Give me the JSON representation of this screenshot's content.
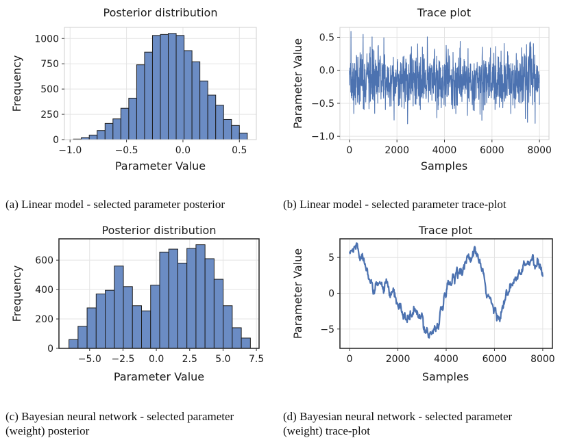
{
  "chart_data": [
    {
      "id": "a",
      "type": "bar",
      "title": "Posterior distribution",
      "xlabel": "Parameter Value",
      "ylabel": "Frequency",
      "xlim": [
        -1.05,
        0.65
      ],
      "ylim": [
        0,
        1110
      ],
      "xticks": [
        -1.0,
        -0.5,
        0.0,
        0.5
      ],
      "xtick_labels": [
        "−1.0",
        "−0.5",
        "0.0",
        "0.5"
      ],
      "yticks": [
        0,
        250,
        500,
        750,
        1000
      ],
      "ytick_labels": [
        "0",
        "250",
        "500",
        "750",
        "1000"
      ],
      "bin_edges": [
        -0.97,
        -0.9,
        -0.83,
        -0.76,
        -0.69,
        -0.62,
        -0.55,
        -0.48,
        -0.41,
        -0.34,
        -0.27,
        -0.2,
        -0.13,
        -0.06,
        0.01,
        0.08,
        0.15,
        0.22,
        0.29,
        0.36,
        0.43,
        0.5,
        0.57
      ],
      "values": [
        5,
        20,
        45,
        90,
        160,
        205,
        310,
        410,
        740,
        865,
        1030,
        1040,
        1050,
        1030,
        880,
        770,
        580,
        440,
        340,
        200,
        140,
        65
      ],
      "grid": true,
      "frame": "light"
    },
    {
      "id": "b",
      "type": "line",
      "title": "Trace plot",
      "xlabel": "Samples",
      "ylabel": "Parameter Value",
      "xlim": [
        -400,
        8400
      ],
      "ylim": [
        -1.05,
        0.65
      ],
      "xticks": [
        0,
        2000,
        4000,
        6000,
        8000
      ],
      "xtick_labels": [
        "0",
        "2000",
        "4000",
        "6000",
        "8000"
      ],
      "yticks": [
        -1.0,
        -0.5,
        0.0,
        0.5
      ],
      "ytick_labels": [
        "−1.0",
        "−0.5",
        "0.0",
        "0.5"
      ],
      "n_samples": 8000,
      "mean": -0.15,
      "sd": 0.22,
      "min": -0.95,
      "max": 0.59,
      "grid": true,
      "frame": "light"
    },
    {
      "id": "c",
      "type": "bar",
      "title": "Posterior distribution",
      "xlabel": "Parameter Value",
      "ylabel": "Frequency",
      "xlim": [
        -7.3,
        7.7
      ],
      "ylim": [
        0,
        745
      ],
      "xticks": [
        -5.0,
        -2.5,
        0.0,
        2.5,
        5.0,
        7.5
      ],
      "xtick_labels": [
        "−5.0",
        "−2.5",
        "0.0",
        "2.5",
        "5.0",
        "7.5"
      ],
      "yticks": [
        0,
        200,
        400,
        600
      ],
      "ytick_labels": [
        "0",
        "200",
        "400",
        "600"
      ],
      "bin_edges": [
        -6.55,
        -5.87,
        -5.19,
        -4.51,
        -3.83,
        -3.15,
        -2.47,
        -1.79,
        -1.11,
        -0.43,
        0.25,
        0.93,
        1.61,
        2.29,
        2.97,
        3.65,
        4.33,
        5.01,
        5.69,
        6.37,
        7.05
      ],
      "values": [
        60,
        150,
        275,
        370,
        395,
        560,
        420,
        290,
        255,
        430,
        655,
        675,
        580,
        680,
        705,
        610,
        470,
        290,
        140,
        70
      ],
      "grid": true,
      "frame": "dark"
    },
    {
      "id": "d",
      "type": "line",
      "title": "Trace plot",
      "xlabel": "Samples",
      "ylabel": "Parameter Value",
      "xlim": [
        -400,
        8400
      ],
      "ylim": [
        -7.7,
        7.6
      ],
      "xticks": [
        0,
        2000,
        4000,
        6000,
        8000
      ],
      "xtick_labels": [
        "0",
        "2000",
        "4000",
        "6000",
        "8000"
      ],
      "yticks": [
        -5,
        0,
        5
      ],
      "ytick_labels": [
        "−5",
        "0",
        "5"
      ],
      "n_samples": 8000,
      "x": [
        0,
        300,
        600,
        900,
        1000,
        1200,
        1500,
        1700,
        1900,
        2100,
        2400,
        2700,
        3000,
        3200,
        3400,
        3700,
        3900,
        4100,
        4400,
        4700,
        5000,
        5200,
        5400,
        5600,
        5900,
        6100,
        6300,
        6500,
        6800,
        7000,
        7300,
        7600,
        7800,
        8000
      ],
      "y": [
        5.5,
        6.6,
        4.6,
        2.6,
        -0.6,
        1.2,
        0.8,
        -0.4,
        -1.1,
        -2.3,
        -3.8,
        -2.6,
        -4.1,
        -5.1,
        -5.5,
        -3.6,
        -1.6,
        0.6,
        2.9,
        3.9,
        4.8,
        5.6,
        4.2,
        0.7,
        -1.8,
        -3.2,
        -2.0,
        -0.6,
        1.3,
        2.6,
        3.8,
        4.6,
        3.4,
        2.6
      ],
      "grid": true,
      "frame": "dark"
    }
  ],
  "captions": {
    "a": "(a) Linear model - selected parameter posterior",
    "b": "(b) Linear model - selected parameter trace-plot",
    "c_line1": "(c) Bayesian neural network - selected parameter",
    "c_line2": "(weight) posterior",
    "d_line1": "(d) Bayesian neural network - selected parameter",
    "d_line2": "(weight) trace-plot"
  },
  "colors": {
    "bar_fill": "#6b8cc4",
    "bar_edge": "#1d1d1d",
    "line": "#4c72b0",
    "grid": "#e3e3e3",
    "frame_light": "#cfcfcf",
    "frame_dark": "#222222"
  }
}
